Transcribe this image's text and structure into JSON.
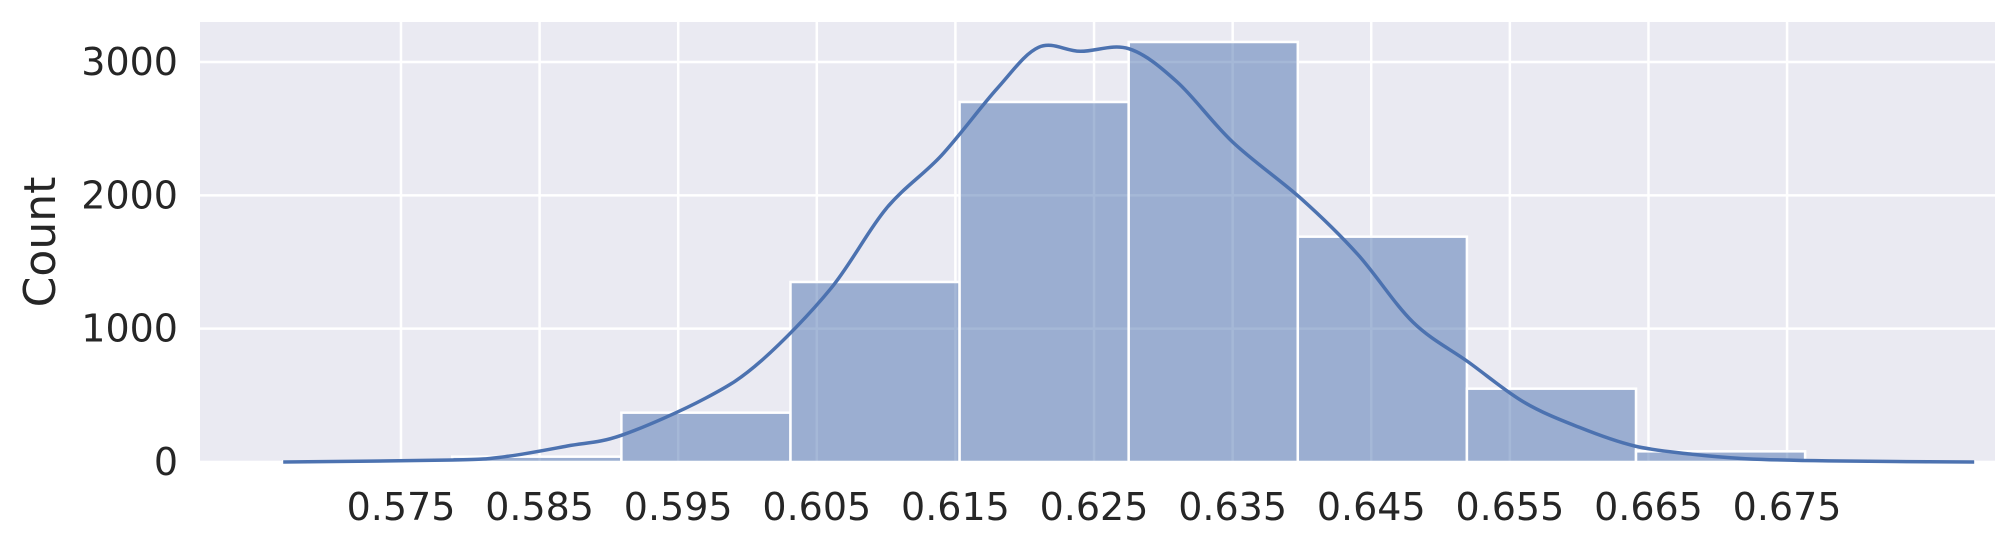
{
  "chart_data": {
    "type": "bar",
    "subtype": "histogram-with-kde",
    "ylabel": "Count",
    "xlabel": "",
    "x_ticks": [
      "0.575",
      "0.585",
      "0.595",
      "0.605",
      "0.615",
      "0.625",
      "0.635",
      "0.645",
      "0.655",
      "0.665",
      "0.675"
    ],
    "y_ticks": [
      "0",
      "1000",
      "2000",
      "3000"
    ],
    "xlim": [
      0.5605,
      0.69
    ],
    "ylim": [
      0,
      3300
    ],
    "bins": [
      {
        "x0": 0.5665,
        "x1": 0.5787,
        "count": 5
      },
      {
        "x0": 0.5787,
        "x1": 0.5909,
        "count": 40
      },
      {
        "x0": 0.5909,
        "x1": 0.6031,
        "count": 370
      },
      {
        "x0": 0.6031,
        "x1": 0.6153,
        "count": 1350
      },
      {
        "x0": 0.6153,
        "x1": 0.6275,
        "count": 2700
      },
      {
        "x0": 0.6275,
        "x1": 0.6397,
        "count": 3150
      },
      {
        "x0": 0.6397,
        "x1": 0.6519,
        "count": 1690
      },
      {
        "x0": 0.6519,
        "x1": 0.6641,
        "count": 550
      },
      {
        "x0": 0.6641,
        "x1": 0.6763,
        "count": 80
      },
      {
        "x0": 0.6763,
        "x1": 0.6885,
        "count": 5
      }
    ],
    "kde": {
      "x": [
        0.5665,
        0.5787,
        0.5825,
        0.587,
        0.5909,
        0.597,
        0.601,
        0.606,
        0.61,
        0.614,
        0.618,
        0.621,
        0.624,
        0.6275,
        0.631,
        0.635,
        0.64,
        0.644,
        0.648,
        0.652,
        0.656,
        0.66,
        0.664,
        0.668,
        0.672,
        0.678,
        0.6885
      ],
      "y": [
        0,
        15,
        40,
        120,
        200,
        480,
        760,
        1300,
        1900,
        2300,
        2800,
        3110,
        3080,
        3100,
        2850,
        2400,
        1970,
        1560,
        1050,
        750,
        450,
        260,
        120,
        60,
        25,
        8,
        0
      ]
    },
    "bar_color": "#4c72b0",
    "bar_alpha": 0.5,
    "kde_color": "#4c72b0",
    "background_color": "#eaeaf2",
    "grid": true,
    "legend": "none"
  }
}
